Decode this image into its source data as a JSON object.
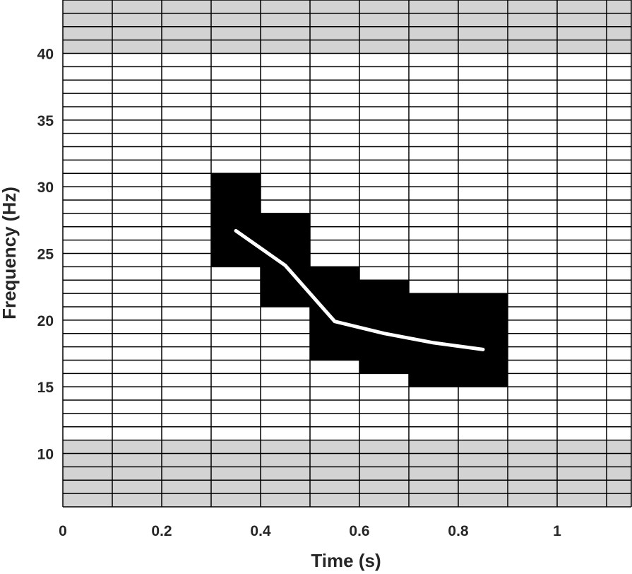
{
  "chart_data": {
    "type": "heatmap",
    "xlabel": "Time (s)",
    "ylabel": "Frequency (Hz)",
    "xlim": [
      0,
      1.15
    ],
    "ylim": [
      6,
      44
    ],
    "x_ticks": [
      "0",
      "0.2",
      "0.4",
      "0.6",
      "0.8",
      "1"
    ],
    "y_ticks": [
      "10",
      "15",
      "20",
      "25",
      "30",
      "35",
      "40"
    ],
    "x_tick_values": [
      0,
      0.2,
      0.4,
      0.6,
      0.8,
      1
    ],
    "y_tick_values": [
      10,
      15,
      20,
      25,
      30,
      35,
      40
    ],
    "grid": "on",
    "time_bin_edges": [
      0,
      0.1,
      0.2,
      0.3,
      0.4,
      0.5,
      0.6,
      0.7,
      0.8,
      0.9,
      1.0,
      1.1,
      1.15
    ],
    "freq_bin_height": 1,
    "excluded_bands": [
      {
        "fmin": 6,
        "fmax": 11
      },
      {
        "fmin": 40,
        "fmax": 44
      }
    ],
    "highlighted_cells": [
      {
        "tmin": 0.3,
        "tmax": 0.4,
        "fmin": 24,
        "fmax": 31
      },
      {
        "tmin": 0.4,
        "tmax": 0.5,
        "fmin": 21,
        "fmax": 28
      },
      {
        "tmin": 0.5,
        "tmax": 0.6,
        "fmin": 17,
        "fmax": 24
      },
      {
        "tmin": 0.6,
        "tmax": 0.7,
        "fmin": 16,
        "fmax": 23
      },
      {
        "tmin": 0.7,
        "tmax": 0.9,
        "fmin": 15,
        "fmax": 22
      }
    ],
    "series": [
      {
        "x": [
          0.35,
          0.45,
          0.55,
          0.65,
          0.75,
          0.85
        ],
        "y": [
          26.7,
          24.1,
          19.9,
          19.0,
          18.3,
          17.8
        ]
      }
    ],
    "colors": {
      "cell_fill": "#ffffff",
      "excluded_fill": "#d3d3d3",
      "highlight_fill": "#000000",
      "grid": "#000000",
      "line": "#ffffff",
      "text": "#262626"
    }
  }
}
